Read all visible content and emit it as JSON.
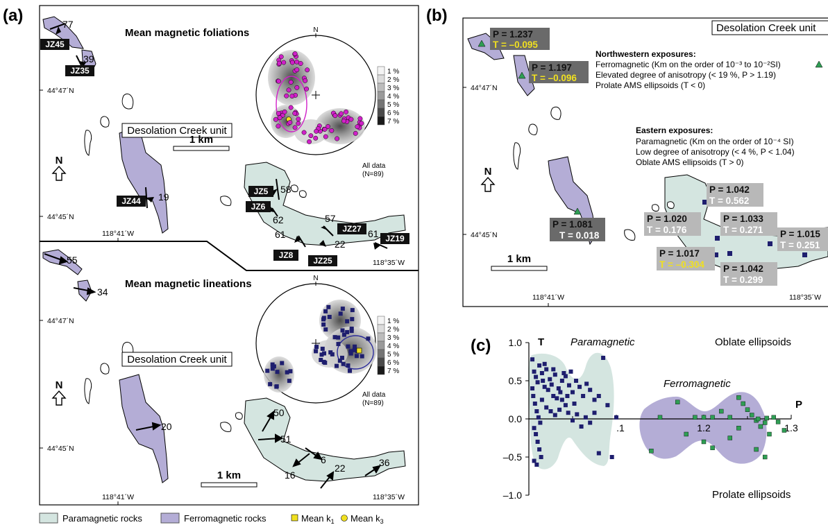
{
  "panels": {
    "a": {
      "label": "(a)",
      "top": {
        "title": "Mean magnetic foliations",
        "unit": "Desolation Creek unit",
        "scale": "1 km",
        "north": "N",
        "lat1": "44°47´N",
        "lat2": "44°45´N",
        "lon1": "118°41´W",
        "stereonet_north": "N",
        "stereonet_caption1": "All data",
        "stereonet_caption2": "(N=89)",
        "sites": [
          "JZ45",
          "JZ35",
          "JZ44",
          "JZ5",
          "JZ6",
          "JZ27",
          "JZ8",
          "JZ25",
          "JZ19"
        ],
        "dips": [
          "77",
          "39",
          "19",
          "58",
          "62",
          "57",
          "61",
          "22",
          "61"
        ],
        "lon2": "118°35´W"
      },
      "bottom": {
        "title": "Mean magnetic lineations",
        "unit": "Desolation Creek unit",
        "scale": "1 km",
        "north": "N",
        "lat1": "44°47´N",
        "lat2": "44°45´N",
        "lon1": "118°41´W",
        "lon2": "118°35´W",
        "stereonet_north": "N",
        "stereonet_caption1": "All data",
        "stereonet_caption2": "(N=89)",
        "plunges": [
          "55",
          "34",
          "20",
          "50",
          "51",
          "6",
          "16",
          "22",
          "36"
        ]
      },
      "density_legend": [
        "1 %",
        "2 %",
        "3 %",
        "4 %",
        "5 %",
        "6 %",
        "7 %"
      ]
    },
    "b": {
      "label": "(b)",
      "unit": "Desolation Creek unit",
      "north": "N",
      "lat1": "44°47´N",
      "lat2": "44°45´N",
      "lon1": "118°41´W",
      "lon2": "118°35´W",
      "scale": "1 km",
      "nw_title": "Northwestern exposures:",
      "nw_line1": "Ferromagnetic (Km on the order of 10⁻³ to 10⁻²SI)",
      "nw_line2": "Elevated degree of anisotropy (< 19 %, P > 1.19)",
      "nw_line3": "Prolate AMS ellipsoids (T < 0)",
      "e_title": "Eastern exposures:",
      "e_line1": "Paramagnetic (Km on the order of 10⁻⁴ SI)",
      "e_line2": "Low degree of anisotropy (< 4 %, P < 1.04)",
      "e_line3": "Oblate AMS ellipsoids (T > 0)",
      "labels": [
        {
          "p": "P = 1.237",
          "t": "T = –0.095"
        },
        {
          "p": "P = 1.197",
          "t": "T = –0.096"
        },
        {
          "p": "P = 1.081",
          "t": "T = 0.018"
        },
        {
          "p": "P = 1.042",
          "t": "T = 0.562"
        },
        {
          "p": "P = 1.020",
          "t": "T = 0.176"
        },
        {
          "p": "P = 1.033",
          "t": "T = 0.271"
        },
        {
          "p": "P = 1.015",
          "t": "T = 0.251"
        },
        {
          "p": "P = 1.017",
          "t": "T = –0.304"
        },
        {
          "p": "P = 1.042",
          "t": "T = 0.299"
        }
      ]
    },
    "c": {
      "label": "(c)",
      "ylabel": "T",
      "xlabel": "P",
      "yticks": [
        "1.0",
        "0.5",
        "0.0",
        "–0.5",
        "–1.0"
      ],
      "xticks": [
        ".1",
        "1.2",
        "1.3"
      ],
      "para": "Paramagnetic",
      "ferro": "Ferromagnetic",
      "oblate": "Oblate ellipsoids",
      "prolate": "Prolate ellipsoids"
    }
  },
  "chart_data": {
    "type": "scatter",
    "xlabel": "P",
    "ylabel": "T",
    "xlim": [
      1.0,
      1.3
    ],
    "ylim": [
      -1.0,
      1.0
    ],
    "series": [
      {
        "name": "Paramagnetic",
        "color": "#1e1e6e",
        "marker": "square",
        "points": [
          [
            1.004,
            0.78
          ],
          [
            1.006,
            0.62
          ],
          [
            1.008,
            0.55
          ],
          [
            1.01,
            0.48
          ],
          [
            1.012,
            0.7
          ],
          [
            1.015,
            0.6
          ],
          [
            1.016,
            0.5
          ],
          [
            1.018,
            0.42
          ],
          [
            1.02,
            0.65
          ],
          [
            1.022,
            0.38
          ],
          [
            1.024,
            0.52
          ],
          [
            1.026,
            0.45
          ],
          [
            1.028,
            0.3
          ],
          [
            1.03,
            0.58
          ],
          [
            1.032,
            0.27
          ],
          [
            1.034,
            0.4
          ],
          [
            1.036,
            0.35
          ],
          [
            1.038,
            0.5
          ],
          [
            1.04,
            0.6
          ],
          [
            1.042,
            0.56
          ],
          [
            1.044,
            0.3
          ],
          [
            1.046,
            0.44
          ],
          [
            1.048,
            0.62
          ],
          [
            1.05,
            0.35
          ],
          [
            1.052,
            0.2
          ],
          [
            1.054,
            0.5
          ],
          [
            1.058,
            0.42
          ],
          [
            1.062,
            0.3
          ],
          [
            1.066,
            0.46
          ],
          [
            1.07,
            0.38
          ],
          [
            1.075,
            0.25
          ],
          [
            1.08,
            0.3
          ],
          [
            1.085,
            0.8
          ],
          [
            1.09,
            0.18
          ],
          [
            1.005,
            0.3
          ],
          [
            1.007,
            0.2
          ],
          [
            1.009,
            0.1
          ],
          [
            1.011,
            0.02
          ],
          [
            1.013,
            -0.05
          ],
          [
            1.006,
            -0.12
          ],
          [
            1.008,
            -0.2
          ],
          [
            1.01,
            -0.3
          ],
          [
            1.012,
            -0.4
          ],
          [
            1.014,
            -0.5
          ],
          [
            1.006,
            -0.55
          ],
          [
            1.009,
            -0.6
          ],
          [
            1.015,
            0.25
          ],
          [
            1.02,
            0.15
          ],
          [
            1.025,
            0.1
          ],
          [
            1.03,
            0.05
          ],
          [
            1.035,
            0.12
          ],
          [
            1.045,
            0.08
          ],
          [
            1.05,
            -0.02
          ],
          [
            1.055,
            0.06
          ],
          [
            1.06,
            -0.1
          ],
          [
            1.065,
            0.02
          ],
          [
            1.07,
            -0.05
          ],
          [
            1.075,
            0.08
          ],
          [
            1.08,
            -0.45
          ],
          [
            1.095,
            -0.5
          ],
          [
            1.1,
            0.02
          ],
          [
            1.004,
            0.4
          ],
          [
            1.018,
            0.72
          ],
          [
            1.028,
            0.65
          ],
          [
            1.038,
            0.25
          ],
          [
            1.042,
            0.18
          ]
        ]
      },
      {
        "name": "Ferromagnetic",
        "color": "#2f9e54",
        "marker": "square",
        "points": [
          [
            1.15,
            0.02
          ],
          [
            1.17,
            0.22
          ],
          [
            1.19,
            0.02
          ],
          [
            1.2,
            0.02
          ],
          [
            1.21,
            0.02
          ],
          [
            1.23,
            0.02
          ],
          [
            1.24,
            0.28
          ],
          [
            1.25,
            0.12
          ],
          [
            1.26,
            -0.02
          ],
          [
            1.262,
            0.0
          ],
          [
            1.27,
            -0.05
          ],
          [
            1.272,
            0.01
          ],
          [
            1.28,
            0.02
          ],
          [
            1.285,
            -0.04
          ],
          [
            1.24,
            -0.12
          ],
          [
            1.23,
            -0.25
          ],
          [
            1.21,
            -0.38
          ],
          [
            1.26,
            -0.4
          ],
          [
            1.27,
            -0.5
          ],
          [
            1.18,
            -0.2
          ],
          [
            1.2,
            -0.3
          ],
          [
            1.22,
            0.1
          ],
          [
            1.255,
            0.05
          ],
          [
            1.265,
            -0.1
          ],
          [
            1.275,
            -0.2
          ],
          [
            1.292,
            -0.15
          ],
          [
            1.14,
            -0.42
          ],
          [
            1.245,
            0.2
          ]
        ]
      }
    ]
  },
  "legend": {
    "para": "Paramagnetic rocks",
    "ferro": "Ferromagnetic rocks",
    "k1": "Mean k",
    "k1_sub": "1",
    "k3": "Mean k",
    "k3_sub": "3"
  },
  "colors": {
    "para_fill": "#d4e5e0",
    "ferro_fill": "#b4add6",
    "magenta": "#d020c8",
    "navy": "#1e1e6e",
    "green": "#2f9e54",
    "yellow": "#f0e020"
  }
}
